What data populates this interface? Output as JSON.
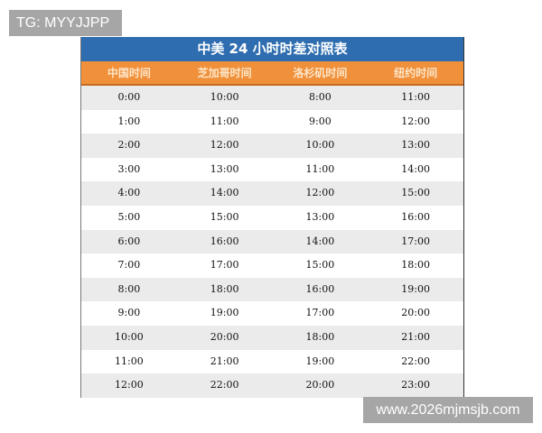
{
  "watermark_top": "TG: MYYJJPP",
  "watermark_bottom": "www.2026mjmsjb.com",
  "table": {
    "title": "中美 24 小时时差对照表",
    "headers": [
      "中国时间",
      "芝加哥时间",
      "洛杉矶时间",
      "纽约时间"
    ],
    "rows": [
      [
        "0:00",
        "10:00",
        "8:00",
        "11:00"
      ],
      [
        "1:00",
        "11:00",
        "9:00",
        "12:00"
      ],
      [
        "2:00",
        "12:00",
        "10:00",
        "13:00"
      ],
      [
        "3:00",
        "13:00",
        "11:00",
        "14:00"
      ],
      [
        "4:00",
        "14:00",
        "12:00",
        "15:00"
      ],
      [
        "5:00",
        "15:00",
        "13:00",
        "16:00"
      ],
      [
        "6:00",
        "16:00",
        "14:00",
        "17:00"
      ],
      [
        "7:00",
        "17:00",
        "15:00",
        "18:00"
      ],
      [
        "8:00",
        "18:00",
        "16:00",
        "19:00"
      ],
      [
        "9:00",
        "19:00",
        "17:00",
        "20:00"
      ],
      [
        "10:00",
        "20:00",
        "18:00",
        "21:00"
      ],
      [
        "11:00",
        "21:00",
        "19:00",
        "22:00"
      ],
      [
        "12:00",
        "22:00",
        "20:00",
        "23:00"
      ]
    ]
  },
  "colors": {
    "title_bg": "#2e6db0",
    "header_bg": "#f0903a"
  }
}
